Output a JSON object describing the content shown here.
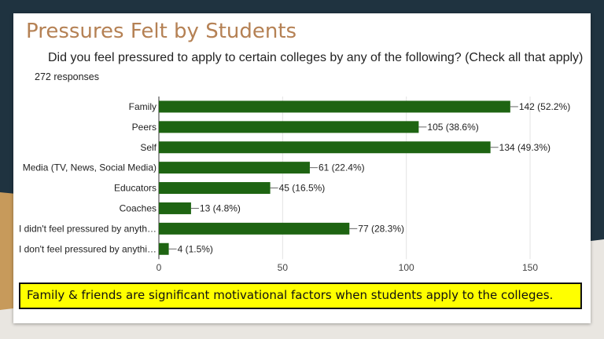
{
  "slide": {
    "title": "Pressures Felt by Students",
    "question": "Did you feel pressured to apply to certain colleges by any of the following? (Check all that apply)",
    "responses": "272 responses",
    "caption": "Family & friends are significant motivational factors when students apply to the colleges."
  },
  "colors": {
    "bar": "#1e6412",
    "title": "#b58154",
    "caption_bg": "#ffff00",
    "background_dark": "#1f3340",
    "background_tan": "#c79a5b"
  },
  "chart_data": {
    "type": "bar",
    "orientation": "horizontal",
    "categories": [
      "Family",
      "Peers",
      "Self",
      "Media (TV, News, Social Media)",
      "Educators",
      "Coaches",
      "I didn't feel pressured by anyth…",
      "I don't feel pressured by anythi…"
    ],
    "values": [
      142,
      105,
      134,
      61,
      45,
      13,
      77,
      4
    ],
    "data_labels": [
      "142 (52.2%)",
      "105 (38.6%)",
      "134 (49.3%)",
      "61 (22.4%)",
      "45 (16.5%)",
      "13 (4.8%)",
      "77 (28.3%)",
      "4 (1.5%)"
    ],
    "xlim": [
      0,
      150
    ],
    "xticks": [
      0,
      50,
      100,
      150
    ],
    "grid": true,
    "legend": "none"
  }
}
